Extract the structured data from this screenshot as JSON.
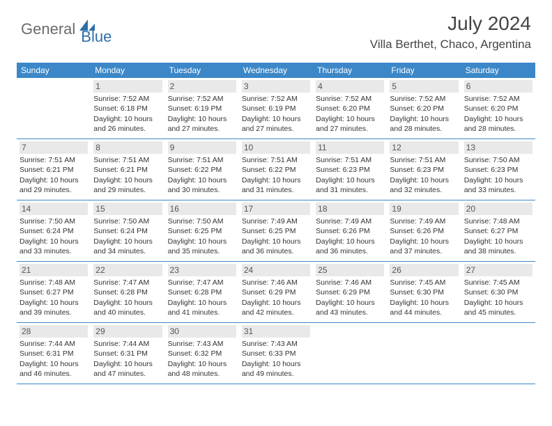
{
  "logo": {
    "general": "General",
    "blue": "Blue"
  },
  "title": "July 2024",
  "location": "Villa Berthet, Chaco, Argentina",
  "colors": {
    "header_bg": "#3b87c8",
    "header_text": "#ffffff",
    "border": "#3b87c8",
    "daynum_bg": "#e9e9e9",
    "text": "#333333",
    "logo_gray": "#6b6b6b",
    "logo_blue": "#2f6fa8"
  },
  "weekdays": [
    "Sunday",
    "Monday",
    "Tuesday",
    "Wednesday",
    "Thursday",
    "Friday",
    "Saturday"
  ],
  "weeks": [
    [
      null,
      {
        "n": "1",
        "sr": "Sunrise: 7:52 AM",
        "ss": "Sunset: 6:18 PM",
        "d1": "Daylight: 10 hours",
        "d2": "and 26 minutes."
      },
      {
        "n": "2",
        "sr": "Sunrise: 7:52 AM",
        "ss": "Sunset: 6:19 PM",
        "d1": "Daylight: 10 hours",
        "d2": "and 27 minutes."
      },
      {
        "n": "3",
        "sr": "Sunrise: 7:52 AM",
        "ss": "Sunset: 6:19 PM",
        "d1": "Daylight: 10 hours",
        "d2": "and 27 minutes."
      },
      {
        "n": "4",
        "sr": "Sunrise: 7:52 AM",
        "ss": "Sunset: 6:20 PM",
        "d1": "Daylight: 10 hours",
        "d2": "and 27 minutes."
      },
      {
        "n": "5",
        "sr": "Sunrise: 7:52 AM",
        "ss": "Sunset: 6:20 PM",
        "d1": "Daylight: 10 hours",
        "d2": "and 28 minutes."
      },
      {
        "n": "6",
        "sr": "Sunrise: 7:52 AM",
        "ss": "Sunset: 6:20 PM",
        "d1": "Daylight: 10 hours",
        "d2": "and 28 minutes."
      }
    ],
    [
      {
        "n": "7",
        "sr": "Sunrise: 7:51 AM",
        "ss": "Sunset: 6:21 PM",
        "d1": "Daylight: 10 hours",
        "d2": "and 29 minutes."
      },
      {
        "n": "8",
        "sr": "Sunrise: 7:51 AM",
        "ss": "Sunset: 6:21 PM",
        "d1": "Daylight: 10 hours",
        "d2": "and 29 minutes."
      },
      {
        "n": "9",
        "sr": "Sunrise: 7:51 AM",
        "ss": "Sunset: 6:22 PM",
        "d1": "Daylight: 10 hours",
        "d2": "and 30 minutes."
      },
      {
        "n": "10",
        "sr": "Sunrise: 7:51 AM",
        "ss": "Sunset: 6:22 PM",
        "d1": "Daylight: 10 hours",
        "d2": "and 31 minutes."
      },
      {
        "n": "11",
        "sr": "Sunrise: 7:51 AM",
        "ss": "Sunset: 6:23 PM",
        "d1": "Daylight: 10 hours",
        "d2": "and 31 minutes."
      },
      {
        "n": "12",
        "sr": "Sunrise: 7:51 AM",
        "ss": "Sunset: 6:23 PM",
        "d1": "Daylight: 10 hours",
        "d2": "and 32 minutes."
      },
      {
        "n": "13",
        "sr": "Sunrise: 7:50 AM",
        "ss": "Sunset: 6:23 PM",
        "d1": "Daylight: 10 hours",
        "d2": "and 33 minutes."
      }
    ],
    [
      {
        "n": "14",
        "sr": "Sunrise: 7:50 AM",
        "ss": "Sunset: 6:24 PM",
        "d1": "Daylight: 10 hours",
        "d2": "and 33 minutes."
      },
      {
        "n": "15",
        "sr": "Sunrise: 7:50 AM",
        "ss": "Sunset: 6:24 PM",
        "d1": "Daylight: 10 hours",
        "d2": "and 34 minutes."
      },
      {
        "n": "16",
        "sr": "Sunrise: 7:50 AM",
        "ss": "Sunset: 6:25 PM",
        "d1": "Daylight: 10 hours",
        "d2": "and 35 minutes."
      },
      {
        "n": "17",
        "sr": "Sunrise: 7:49 AM",
        "ss": "Sunset: 6:25 PM",
        "d1": "Daylight: 10 hours",
        "d2": "and 36 minutes."
      },
      {
        "n": "18",
        "sr": "Sunrise: 7:49 AM",
        "ss": "Sunset: 6:26 PM",
        "d1": "Daylight: 10 hours",
        "d2": "and 36 minutes."
      },
      {
        "n": "19",
        "sr": "Sunrise: 7:49 AM",
        "ss": "Sunset: 6:26 PM",
        "d1": "Daylight: 10 hours",
        "d2": "and 37 minutes."
      },
      {
        "n": "20",
        "sr": "Sunrise: 7:48 AM",
        "ss": "Sunset: 6:27 PM",
        "d1": "Daylight: 10 hours",
        "d2": "and 38 minutes."
      }
    ],
    [
      {
        "n": "21",
        "sr": "Sunrise: 7:48 AM",
        "ss": "Sunset: 6:27 PM",
        "d1": "Daylight: 10 hours",
        "d2": "and 39 minutes."
      },
      {
        "n": "22",
        "sr": "Sunrise: 7:47 AM",
        "ss": "Sunset: 6:28 PM",
        "d1": "Daylight: 10 hours",
        "d2": "and 40 minutes."
      },
      {
        "n": "23",
        "sr": "Sunrise: 7:47 AM",
        "ss": "Sunset: 6:28 PM",
        "d1": "Daylight: 10 hours",
        "d2": "and 41 minutes."
      },
      {
        "n": "24",
        "sr": "Sunrise: 7:46 AM",
        "ss": "Sunset: 6:29 PM",
        "d1": "Daylight: 10 hours",
        "d2": "and 42 minutes."
      },
      {
        "n": "25",
        "sr": "Sunrise: 7:46 AM",
        "ss": "Sunset: 6:29 PM",
        "d1": "Daylight: 10 hours",
        "d2": "and 43 minutes."
      },
      {
        "n": "26",
        "sr": "Sunrise: 7:45 AM",
        "ss": "Sunset: 6:30 PM",
        "d1": "Daylight: 10 hours",
        "d2": "and 44 minutes."
      },
      {
        "n": "27",
        "sr": "Sunrise: 7:45 AM",
        "ss": "Sunset: 6:30 PM",
        "d1": "Daylight: 10 hours",
        "d2": "and 45 minutes."
      }
    ],
    [
      {
        "n": "28",
        "sr": "Sunrise: 7:44 AM",
        "ss": "Sunset: 6:31 PM",
        "d1": "Daylight: 10 hours",
        "d2": "and 46 minutes."
      },
      {
        "n": "29",
        "sr": "Sunrise: 7:44 AM",
        "ss": "Sunset: 6:31 PM",
        "d1": "Daylight: 10 hours",
        "d2": "and 47 minutes."
      },
      {
        "n": "30",
        "sr": "Sunrise: 7:43 AM",
        "ss": "Sunset: 6:32 PM",
        "d1": "Daylight: 10 hours",
        "d2": "and 48 minutes."
      },
      {
        "n": "31",
        "sr": "Sunrise: 7:43 AM",
        "ss": "Sunset: 6:33 PM",
        "d1": "Daylight: 10 hours",
        "d2": "and 49 minutes."
      },
      null,
      null,
      null
    ]
  ]
}
